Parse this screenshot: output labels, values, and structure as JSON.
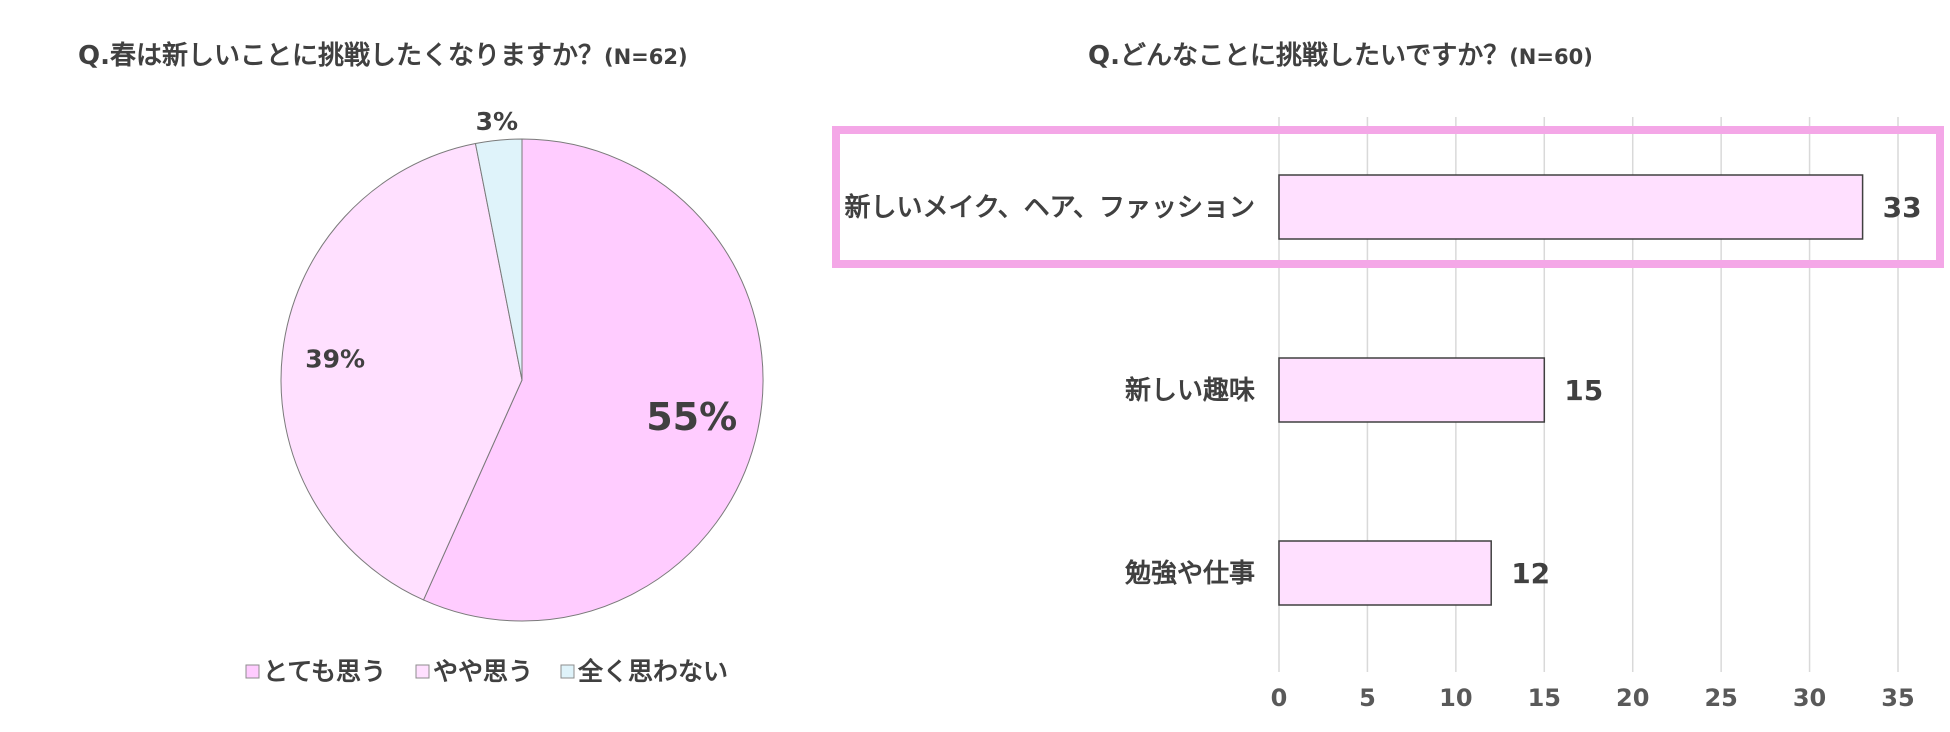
{
  "chart_data": [
    {
      "type": "pie",
      "title": "Q.春は新しいことに挑戦したくなりますか？",
      "n_label": "(N=62)",
      "categories": [
        "とても思う",
        "やや思う",
        "全く思わない"
      ],
      "values": [
        55,
        39,
        3
      ],
      "value_labels": [
        "55%",
        "39%",
        "3%"
      ],
      "colors": [
        "#FFCCFF",
        "#FFE0FF",
        "#DFF3FA"
      ],
      "legend": "bottom"
    },
    {
      "type": "bar",
      "orientation": "horizontal",
      "title": "Q.どんなことに挑戦したいですか？",
      "n_label": "(N=60)",
      "categories": [
        "新しいメイク、ヘア、ファッション",
        "新しい趣味",
        "勉強や仕事"
      ],
      "values": [
        33,
        15,
        12
      ],
      "xlim": [
        0,
        35
      ],
      "xticks": [
        0,
        5,
        10,
        15,
        20,
        25,
        30,
        35
      ],
      "grid": true,
      "bar_color": "#FFE0FF",
      "highlight_category": "新しいメイク、ヘア、ファッション",
      "highlight_color": "#F4A7E7"
    }
  ]
}
